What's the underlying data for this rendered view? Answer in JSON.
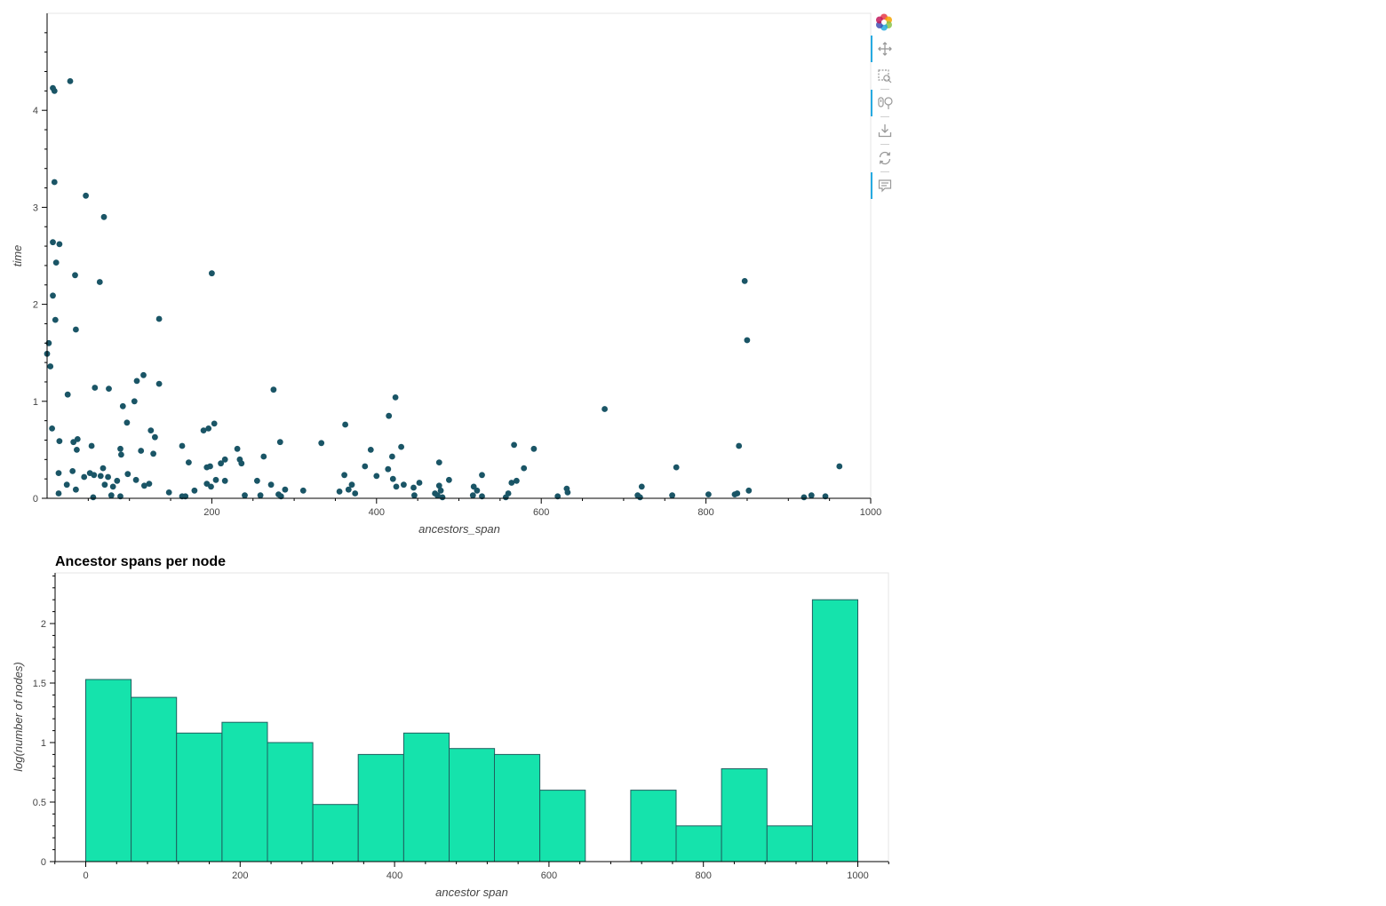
{
  "toolbar": {
    "tools": [
      {
        "name": "bokeh-logo-icon",
        "label": "Bokeh",
        "active": false
      },
      {
        "name": "pan-tool-icon",
        "label": "Pan",
        "active": true
      },
      {
        "name": "box-zoom-tool-icon",
        "label": "Box Zoom",
        "active": false
      },
      {
        "name": "wheel-zoom-tool-icon",
        "label": "Wheel Zoom",
        "active": true
      },
      {
        "name": "save-tool-icon",
        "label": "Save",
        "active": false
      },
      {
        "name": "reset-tool-icon",
        "label": "Reset",
        "active": false
      },
      {
        "name": "hover-tool-icon",
        "label": "Hover",
        "active": true
      }
    ],
    "accent": "#26aae1"
  },
  "chart_data": [
    {
      "type": "scatter",
      "title": "",
      "xlabel": "ancestors_span",
      "ylabel": "time",
      "xlim": [
        0,
        1000
      ],
      "ylim": [
        0,
        5
      ],
      "xticks": [
        "200",
        "400",
        "600",
        "800",
        "1000"
      ],
      "yticks": [
        "0",
        "1",
        "2",
        "3",
        "4"
      ],
      "grid": false,
      "color": "#1a5566",
      "points": [
        [
          7,
          4.23
        ],
        [
          9,
          4.2
        ],
        [
          28,
          4.3
        ],
        [
          9,
          3.26
        ],
        [
          47,
          3.12
        ],
        [
          69,
          2.9
        ],
        [
          7,
          2.64
        ],
        [
          15,
          2.62
        ],
        [
          11,
          2.43
        ],
        [
          34,
          2.3
        ],
        [
          64,
          2.23
        ],
        [
          200,
          2.32
        ],
        [
          7,
          2.09
        ],
        [
          10,
          1.84
        ],
        [
          35,
          1.74
        ],
        [
          136,
          1.85
        ],
        [
          2,
          1.6
        ],
        [
          0,
          1.49
        ],
        [
          4,
          1.36
        ],
        [
          117,
          1.27
        ],
        [
          109,
          1.21
        ],
        [
          136,
          1.18
        ],
        [
          58,
          1.14
        ],
        [
          75,
          1.13
        ],
        [
          25,
          1.07
        ],
        [
          275,
          1.12
        ],
        [
          423,
          1.04
        ],
        [
          92,
          0.95
        ],
        [
          106,
          1.0
        ],
        [
          97,
          0.78
        ],
        [
          203,
          0.77
        ],
        [
          196,
          0.72
        ],
        [
          190,
          0.7
        ],
        [
          126,
          0.7
        ],
        [
          131,
          0.63
        ],
        [
          415,
          0.85
        ],
        [
          362,
          0.76
        ],
        [
          677,
          0.92
        ],
        [
          6,
          0.72
        ],
        [
          15,
          0.59
        ],
        [
          32,
          0.58
        ],
        [
          37,
          0.61
        ],
        [
          54,
          0.54
        ],
        [
          164,
          0.54
        ],
        [
          283,
          0.58
        ],
        [
          333,
          0.57
        ],
        [
          430,
          0.53
        ],
        [
          567,
          0.55
        ],
        [
          591,
          0.51
        ],
        [
          840,
          0.54
        ],
        [
          89,
          0.51
        ],
        [
          114,
          0.49
        ],
        [
          129,
          0.46
        ],
        [
          231,
          0.51
        ],
        [
          393,
          0.5
        ],
        [
          36,
          0.5
        ],
        [
          90,
          0.45
        ],
        [
          263,
          0.43
        ],
        [
          419,
          0.43
        ],
        [
          234,
          0.4
        ],
        [
          216,
          0.4
        ],
        [
          172,
          0.37
        ],
        [
          211,
          0.36
        ],
        [
          236,
          0.36
        ],
        [
          476,
          0.37
        ],
        [
          194,
          0.32
        ],
        [
          198,
          0.33
        ],
        [
          386,
          0.33
        ],
        [
          414,
          0.3
        ],
        [
          579,
          0.31
        ],
        [
          764,
          0.32
        ],
        [
          962,
          0.33
        ],
        [
          68,
          0.31
        ],
        [
          14,
          0.26
        ],
        [
          31,
          0.28
        ],
        [
          52,
          0.26
        ],
        [
          57,
          0.24
        ],
        [
          98,
          0.25
        ],
        [
          65,
          0.23
        ],
        [
          74,
          0.22
        ],
        [
          45,
          0.22
        ],
        [
          361,
          0.24
        ],
        [
          400,
          0.23
        ],
        [
          528,
          0.24
        ],
        [
          85,
          0.18
        ],
        [
          108,
          0.19
        ],
        [
          205,
          0.19
        ],
        [
          216,
          0.18
        ],
        [
          255,
          0.18
        ],
        [
          420,
          0.2
        ],
        [
          488,
          0.19
        ],
        [
          570,
          0.18
        ],
        [
          564,
          0.16
        ],
        [
          24,
          0.14
        ],
        [
          70,
          0.14
        ],
        [
          80,
          0.12
        ],
        [
          118,
          0.13
        ],
        [
          124,
          0.15
        ],
        [
          194,
          0.15
        ],
        [
          199,
          0.12
        ],
        [
          272,
          0.14
        ],
        [
          370,
          0.14
        ],
        [
          424,
          0.12
        ],
        [
          433,
          0.14
        ],
        [
          452,
          0.16
        ],
        [
          445,
          0.11
        ],
        [
          476,
          0.13
        ],
        [
          518,
          0.12
        ],
        [
          722,
          0.12
        ],
        [
          35,
          0.09
        ],
        [
          14,
          0.05
        ],
        [
          148,
          0.06
        ],
        [
          179,
          0.08
        ],
        [
          289,
          0.09
        ],
        [
          311,
          0.08
        ],
        [
          355,
          0.07
        ],
        [
          366,
          0.09
        ],
        [
          374,
          0.05
        ],
        [
          471,
          0.05
        ],
        [
          522,
          0.08
        ],
        [
          478,
          0.08
        ],
        [
          631,
          0.1
        ],
        [
          632,
          0.06
        ],
        [
          852,
          0.08
        ],
        [
          56,
          0.01
        ],
        [
          78,
          0.03
        ],
        [
          89,
          0.02
        ],
        [
          164,
          0.02
        ],
        [
          168,
          0.02
        ],
        [
          240,
          0.03
        ],
        [
          259,
          0.03
        ],
        [
          281,
          0.04
        ],
        [
          284,
          0.02
        ],
        [
          446,
          0.03
        ],
        [
          474,
          0.03
        ],
        [
          480,
          0.01
        ],
        [
          517,
          0.03
        ],
        [
          528,
          0.02
        ],
        [
          557,
          0.01
        ],
        [
          560,
          0.05
        ],
        [
          620,
          0.02
        ],
        [
          717,
          0.03
        ],
        [
          720,
          0.01
        ],
        [
          759,
          0.03
        ],
        [
          803,
          0.04
        ],
        [
          835,
          0.04
        ],
        [
          838,
          0.05
        ],
        [
          919,
          0.01
        ],
        [
          928,
          0.03
        ],
        [
          945,
          0.02
        ],
        [
          847,
          2.24
        ],
        [
          850,
          1.63
        ]
      ]
    },
    {
      "type": "bar",
      "title": "Ancestor spans per node",
      "xlabel": "ancestor span",
      "ylabel": "log(number of nodes)",
      "xlim": [
        -40,
        1040
      ],
      "ylim": [
        0,
        2.45
      ],
      "xticks": [
        "0",
        "200",
        "400",
        "600",
        "800",
        "1000"
      ],
      "yticks": [
        "0",
        "0.5",
        "1",
        "1.5",
        "2"
      ],
      "grid": false,
      "fill_color": "#15e3ac",
      "line_color": "#1f5f5f",
      "bins": [
        {
          "left": 0,
          "right": 58.8,
          "value": 1.53
        },
        {
          "left": 58.8,
          "right": 117.6,
          "value": 1.38
        },
        {
          "left": 117.6,
          "right": 176.5,
          "value": 1.08
        },
        {
          "left": 176.5,
          "right": 235.3,
          "value": 1.17
        },
        {
          "left": 235.3,
          "right": 294.1,
          "value": 1.0
        },
        {
          "left": 294.1,
          "right": 352.9,
          "value": 0.48
        },
        {
          "left": 352.9,
          "right": 411.8,
          "value": 0.9
        },
        {
          "left": 411.8,
          "right": 470.6,
          "value": 1.08
        },
        {
          "left": 470.6,
          "right": 529.4,
          "value": 0.95
        },
        {
          "left": 529.4,
          "right": 588.2,
          "value": 0.9
        },
        {
          "left": 588.2,
          "right": 647.1,
          "value": 0.6
        },
        {
          "left": 647.1,
          "right": 705.9,
          "value": 0
        },
        {
          "left": 705.9,
          "right": 764.7,
          "value": 0.6
        },
        {
          "left": 764.7,
          "right": 823.5,
          "value": 0.3
        },
        {
          "left": 823.5,
          "right": 882.4,
          "value": 0.78
        },
        {
          "left": 882.4,
          "right": 941.2,
          "value": 0.3
        },
        {
          "left": 941.2,
          "right": 1000,
          "value": 2.2
        }
      ]
    }
  ]
}
